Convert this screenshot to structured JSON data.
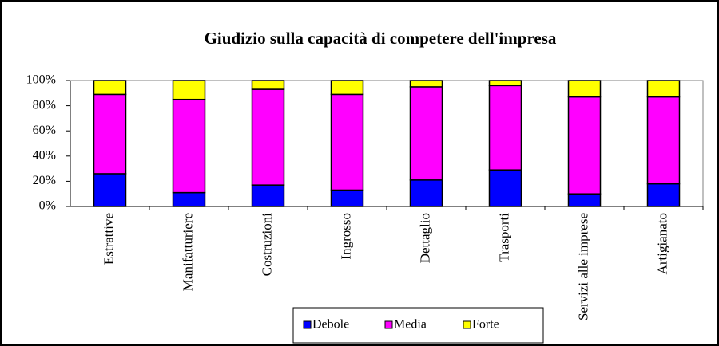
{
  "chart_data": {
    "type": "stacked_bar",
    "title": "Giudizio sulla capacità di competere dell'impresa",
    "categories": [
      "Estrattive",
      "Manifatturiere",
      "Costruzioni",
      "Ingrosso",
      "Dettaglio",
      "Trasporti",
      "Servizi alle imprese",
      "Artigianato"
    ],
    "series": [
      {
        "name": "Debole",
        "color": "#0000ff",
        "values": [
          26,
          11,
          17,
          13,
          21,
          29,
          10,
          18
        ]
      },
      {
        "name": "Media",
        "color": "#ff00ff",
        "values": [
          63,
          74,
          76,
          76,
          74,
          67,
          77,
          69
        ]
      },
      {
        "name": "Forte",
        "color": "#ffff00",
        "values": [
          11,
          15,
          7,
          11,
          5,
          4,
          13,
          13
        ]
      }
    ],
    "ylim": [
      0,
      100
    ],
    "yticks": [
      {
        "value": 0,
        "label": "0%"
      },
      {
        "value": 20,
        "label": "20%"
      },
      {
        "value": 40,
        "label": "40%"
      },
      {
        "value": 60,
        "label": "60%"
      },
      {
        "value": 80,
        "label": "80%"
      },
      {
        "value": 100,
        "label": "100%"
      }
    ],
    "grid": false
  }
}
